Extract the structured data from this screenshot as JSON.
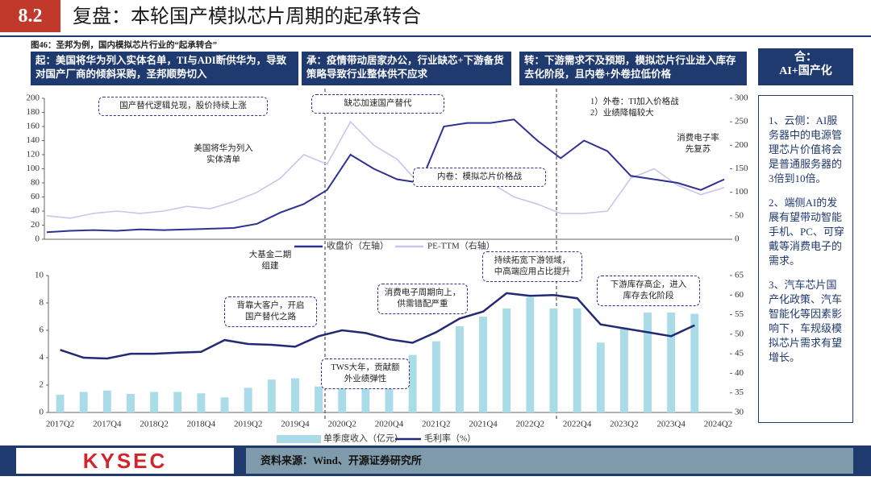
{
  "header": {
    "section": "8.2",
    "title": "复盘：本轮国产模拟芯片周期的起承转合"
  },
  "caption": "图46：圣邦为例，国内模拟芯片行业的“起承转合”",
  "phases": [
    "起：美国将华为列入实体名单，TI与ADI断供华为，导致对国产厂商的倾斜采购，圣邦顺势切入",
    "承：疫情带动居家办公，行业缺芯+下游备货策略导致行业整体供不应求",
    "转：下游需求不及预期，模拟芯片行业进入库存去化阶段，且内卷+外卷拉低价格",
    "合：\nAI+国产化"
  ],
  "chart_data": [
    {
      "type": "line",
      "series": [
        {
          "name": "收盘价（左轴）",
          "color": "#2e3192",
          "values": [
            10,
            12,
            13,
            12,
            14,
            13,
            14,
            15,
            16,
            22,
            38,
            50,
            70,
            120,
            100,
            85,
            80,
            160,
            165,
            165,
            170,
            140,
            115,
            140,
            125,
            90,
            85,
            80,
            70,
            85
          ]
        },
        {
          "name": "PE-TTM（右轴）",
          "color": "#c8c6ea",
          "axis": "y2",
          "values": [
            50,
            45,
            55,
            60,
            55,
            60,
            70,
            65,
            80,
            100,
            130,
            180,
            160,
            250,
            200,
            170,
            115,
            140,
            130,
            120,
            90,
            75,
            55,
            55,
            60,
            130,
            150,
            115,
            95,
            110
          ]
        }
      ],
      "ylim": [
        0,
        200
      ],
      "yticks": [
        0,
        20,
        40,
        60,
        80,
        100,
        120,
        140,
        160,
        180,
        200
      ],
      "y2lim": [
        0,
        300
      ],
      "y2ticks": [
        0,
        50,
        100,
        150,
        200,
        250,
        300
      ],
      "annotations": [
        "国产替代逻辑兑现，股价持续上涨",
        "缺芯加速国产替代",
        "内卷：模拟芯片价格战",
        "美国将华为列入\n实体清单",
        "1）外卷：TI加入价格战\n2）业绩降幅较大",
        "消费电子率\n先复苏",
        "大基金二期\n组建"
      ]
    },
    {
      "type": "bar",
      "categories": [
        "2017Q2",
        null,
        "2017Q4",
        null,
        "2018Q2",
        null,
        "2018Q4",
        null,
        "2019Q2",
        null,
        "2019Q4",
        null,
        "2020Q2",
        null,
        "2020Q4",
        null,
        "2021Q2",
        null,
        "2021Q4",
        null,
        "2022Q2",
        null,
        "2022Q4",
        null,
        "2023Q2",
        null,
        "2023Q4",
        null,
        "2024Q2"
      ],
      "series": [
        {
          "name": "单季度收入（亿元）",
          "color": "#a9dce6",
          "type": "bar",
          "values": [
            1.3,
            1.5,
            1.6,
            1.35,
            1.5,
            1.5,
            1.4,
            1.1,
            1.8,
            2.4,
            2.5,
            1.9,
            3.0,
            3.7,
            3.9,
            4.2,
            5.2,
            6.3,
            7.0,
            7.6,
            8.4,
            7.6,
            7.6,
            5.1,
            6.2,
            7.3,
            7.3,
            7.2,
            null
          ]
        },
        {
          "name": "毛利率（%）",
          "color": "#232a75",
          "type": "line",
          "axis": "y2",
          "values": [
            46,
            44,
            43.8,
            45,
            45,
            45.3,
            45.5,
            48.5,
            47.5,
            47.3,
            46.8,
            49.5,
            51,
            50.3,
            48.7,
            47.8,
            50.5,
            54,
            55.8,
            60.5,
            59.8,
            60,
            59.2,
            52.5,
            51.5,
            50.5,
            49.5,
            52.3,
            null
          ]
        }
      ],
      "ylim": [
        0,
        10
      ],
      "yticks": [
        0,
        2,
        4,
        6,
        8,
        10
      ],
      "y2lim": [
        30,
        65
      ],
      "y2ticks": [
        30,
        35,
        40,
        45,
        50,
        55,
        60,
        65
      ],
      "annotations": [
        "背靠大客户，开启\n国产替代之路",
        "消费电子周期向上，\n供需错配严重",
        "持续拓宽下游领域，\n中高端应用占比提升",
        "下游库存高企，进入\n库存去化阶段",
        "TWS大年，贡献额\n外业绩弹性"
      ]
    }
  ],
  "sidebar": [
    "1、云侧：AI服务器中的电源管理芯片价值将会是普通服务器的3倍到10倍。",
    "2、端侧AI的发展有望带动智能手机、PC、可穿戴等消费电子的需求。",
    "3、汽车芯片国产化政策、汽车智能化等因素影响下，车规级模拟芯片需求有望增长。"
  ],
  "source": "资料来源：Wind、开源证券研究所",
  "logo": "KYSEC"
}
